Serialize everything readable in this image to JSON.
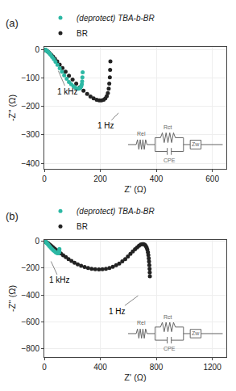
{
  "chart_data": [
    {
      "type": "scatter",
      "title": "(a)",
      "xlabel": "Z' (Ω)",
      "ylabel": "-Z'' (Ω)",
      "series": [
        {
          "name": "(deprotect) TBA-b-BR",
          "color": "#2CB8A4",
          "marker": "circle",
          "x": [
            3,
            5,
            7,
            9,
            12,
            15,
            19,
            23,
            28,
            34,
            40,
            47,
            55,
            63,
            71,
            80,
            88,
            96,
            104,
            111,
            117,
            122,
            126,
            129,
            132,
            134,
            135,
            136,
            137
          ],
          "values": [
            -1,
            -2,
            -3,
            -5,
            -7,
            -10,
            -14,
            -19,
            -26,
            -34,
            -43,
            -54,
            -66,
            -78,
            -91,
            -103,
            -114,
            -122,
            -129,
            -134,
            -137,
            -138,
            -137,
            -134,
            -129,
            -122,
            -112,
            -98,
            -80
          ]
        },
        {
          "name": "BR",
          "color": "#222222",
          "marker": "circle",
          "x": [
            3,
            5,
            7,
            9,
            12,
            16,
            20,
            25,
            31,
            38,
            46,
            55,
            65,
            76,
            88,
            101,
            114,
            127,
            140,
            153,
            165,
            176,
            187,
            196,
            204,
            212,
            218,
            223,
            227,
            230,
            232,
            234,
            235,
            236
          ],
          "values": [
            -1,
            -2,
            -3,
            -5,
            -7,
            -10,
            -14,
            -19,
            -25,
            -33,
            -42,
            -53,
            -65,
            -78,
            -92,
            -106,
            -120,
            -133,
            -145,
            -156,
            -165,
            -172,
            -177,
            -179,
            -179,
            -177,
            -172,
            -164,
            -153,
            -138,
            -120,
            -98,
            -72,
            -42
          ]
        }
      ],
      "xlim": [
        0,
        650
      ],
      "ylim": [
        -420,
        10
      ],
      "xticks": [
        0,
        200,
        400,
        600
      ],
      "yticks": [
        0,
        -100,
        -200,
        -300,
        -400
      ],
      "legend": "upper left",
      "annotations": [
        {
          "text": "1 kHz",
          "x": 82,
          "y": -147,
          "tip_x": 50,
          "tip_y": -75
        },
        {
          "text": "1 Hz",
          "x": 220,
          "y": -268,
          "tip_x": 265,
          "tip_y": -223
        }
      ],
      "circuit": [
        "Rel",
        "Rct",
        "CPE",
        "Zw"
      ]
    },
    {
      "type": "scatter",
      "title": "(b)",
      "xlabel": "Z' (Ω)",
      "ylabel": "-Z'' (Ω)",
      "series": [
        {
          "name": "(deprotect) TBA-b-BR",
          "color": "#2CB8A4",
          "marker": "circle",
          "x": [
            3,
            5,
            7,
            9,
            12,
            16,
            20,
            25,
            31,
            38,
            46,
            55,
            64,
            73,
            81,
            88,
            94,
            98,
            102,
            104,
            106,
            107,
            108
          ],
          "values": [
            -1,
            -2,
            -3,
            -5,
            -8,
            -12,
            -17,
            -23,
            -30,
            -39,
            -48,
            -58,
            -67,
            -75,
            -82,
            -87,
            -89,
            -90,
            -89,
            -86,
            -80,
            -71,
            -58
          ]
        },
        {
          "name": "BR",
          "color": "#222222",
          "marker": "circle",
          "x": [
            3,
            5,
            8,
            11,
            14,
            18,
            23,
            29,
            36,
            44,
            53,
            63,
            75,
            88,
            102,
            118,
            135,
            154,
            173,
            194,
            216,
            239,
            263,
            288,
            313,
            338,
            364,
            390,
            415,
            440,
            465,
            489,
            513,
            535,
            557,
            578,
            597,
            615,
            632,
            648,
            663,
            676,
            688,
            699,
            709,
            718,
            725,
            731,
            736,
            740,
            743,
            746,
            748,
            750,
            752,
            753,
            754
          ],
          "values": [
            -1,
            -2,
            -3,
            -5,
            -7,
            -10,
            -14,
            -18,
            -24,
            -30,
            -38,
            -47,
            -57,
            -68,
            -80,
            -92,
            -105,
            -119,
            -133,
            -147,
            -160,
            -172,
            -183,
            -192,
            -199,
            -205,
            -209,
            -210,
            -209,
            -205,
            -199,
            -190,
            -179,
            -166,
            -150,
            -133,
            -114,
            -95,
            -77,
            -60,
            -46,
            -34,
            -26,
            -22,
            -23,
            -27,
            -36,
            -48,
            -63,
            -82,
            -103,
            -127,
            -152,
            -178,
            -205,
            -232,
            -260
          ]
        }
      ],
      "xlim": [
        0,
        1300
      ],
      "ylim": [
        -860,
        10
      ],
      "xticks": [
        0,
        400,
        800,
        1200
      ],
      "yticks": [
        0,
        -200,
        -400,
        -600,
        -800
      ],
      "legend": "upper left",
      "annotations": [
        {
          "text": "1 kHz",
          "x": 110,
          "y": -290,
          "tip_x": 48,
          "tip_y": -150
        },
        {
          "text": "1 Hz",
          "x": 520,
          "y": -520,
          "tip_x": 670,
          "tip_y": -405
        }
      ],
      "circuit": [
        "Rel",
        "Rct",
        "CPE",
        "Zw"
      ]
    }
  ]
}
